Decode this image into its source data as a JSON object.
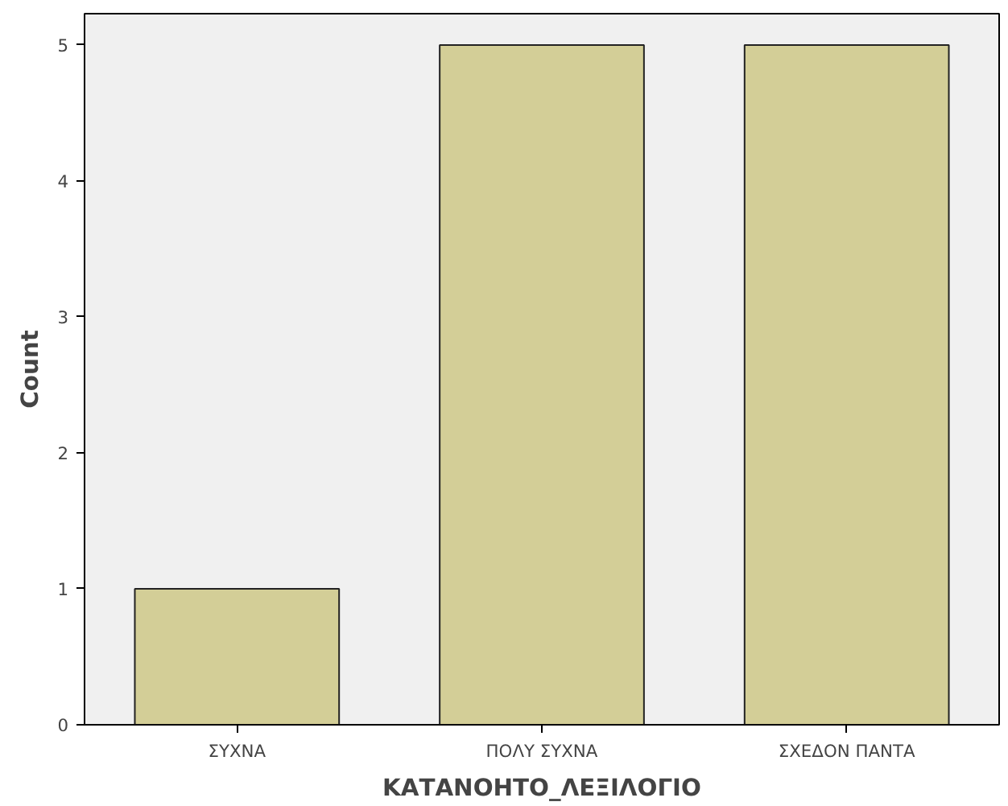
{
  "chart_data": {
    "type": "bar",
    "xlabel": "ΚΑΤΑΝΟΗΤΟ_ΛΕΞΙΛΟΓΙΟ",
    "ylabel": "Count",
    "categories": [
      "ΣΥΧΝΑ",
      "ΠΟΛΥ ΣΥΧΝΑ",
      "ΣΧΕΔΟΝ ΠΑΝΤΑ"
    ],
    "values": [
      1,
      5,
      5
    ],
    "color": "#d3ce97",
    "ylim": [
      0,
      5.23
    ],
    "yticks": [
      0,
      1,
      2,
      3,
      4,
      5
    ],
    "grid": false
  }
}
